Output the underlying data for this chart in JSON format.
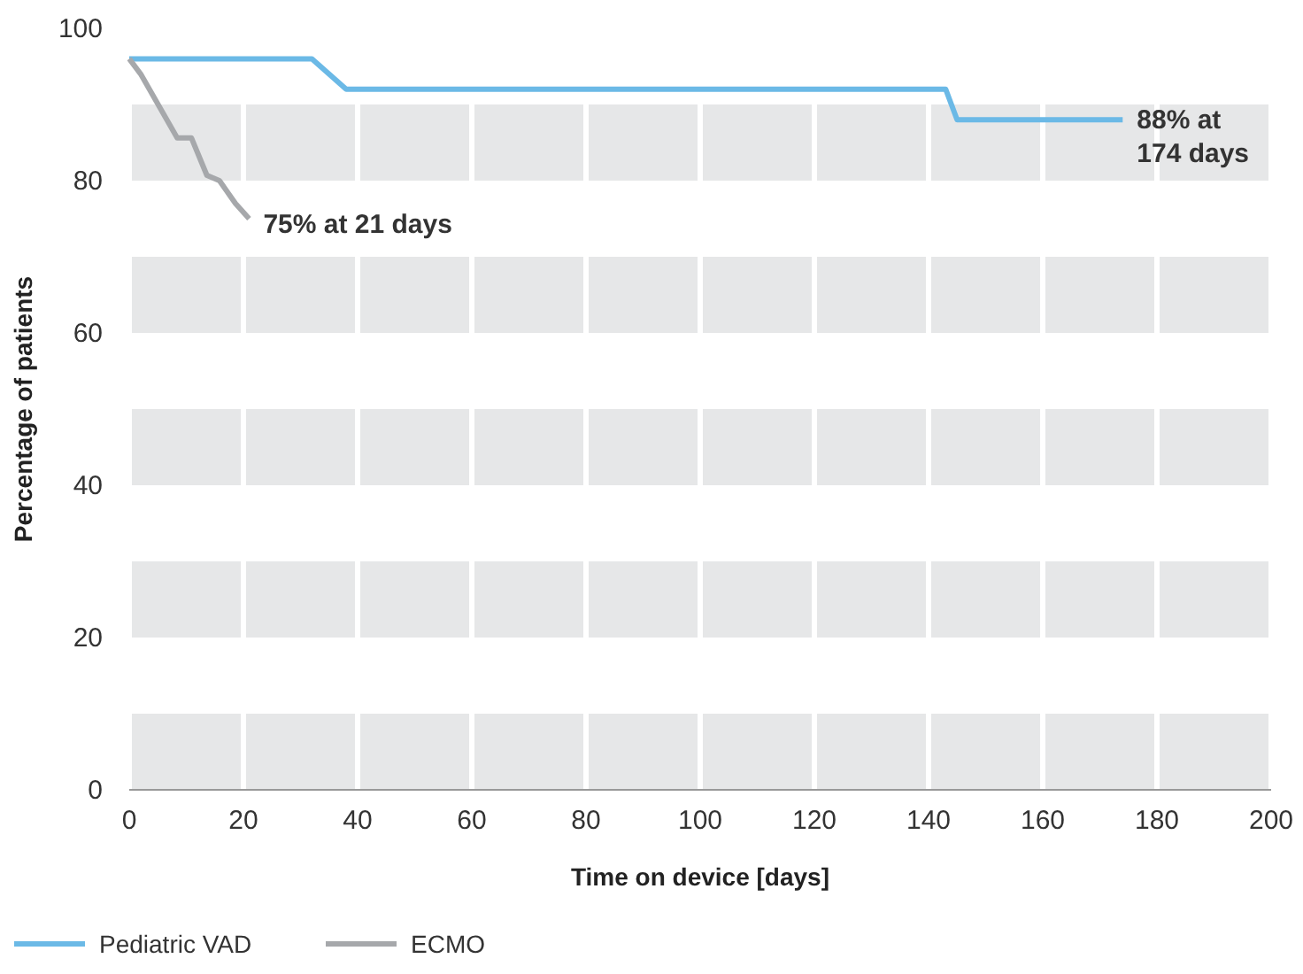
{
  "chart_data": {
    "type": "line",
    "xlabel": "Time on device [days]",
    "ylabel": "Percentage of patients",
    "xlim": [
      0,
      200
    ],
    "xticks": [
      0,
      20,
      40,
      60,
      80,
      100,
      120,
      140,
      160,
      180,
      200
    ],
    "ylim": [
      0,
      100
    ],
    "yticks": [
      0,
      20,
      40,
      60,
      80,
      100
    ],
    "grid": "x",
    "legend": "bottom left",
    "marker": "none",
    "line_style": "solid",
    "bands": [
      {
        "axis": "y",
        "from": 0,
        "to": 10,
        "color": "#e6e7e8"
      },
      {
        "axis": "y",
        "from": 20,
        "to": 30,
        "color": "#e6e7e8"
      },
      {
        "axis": "y",
        "from": 40,
        "to": 50,
        "color": "#e6e7e8"
      },
      {
        "axis": "y",
        "from": 60,
        "to": 70,
        "color": "#e6e7e8"
      },
      {
        "axis": "y",
        "from": 80,
        "to": 90,
        "color": "#e6e7e8"
      }
    ],
    "series": [
      {
        "name": "Pediatric VAD",
        "color": "#6bb9e6",
        "x": [
          0,
          32,
          38,
          143,
          145,
          174
        ],
        "values": [
          96,
          96,
          92,
          92,
          88,
          88
        ]
      },
      {
        "name": "ECMO",
        "color": "#a6a8ab",
        "x": [
          0,
          2,
          8.4,
          10.9,
          13.6,
          15.8,
          18.6,
          21
        ],
        "values": [
          96,
          94,
          85.6,
          85.6,
          80.7,
          80,
          77,
          75
        ]
      }
    ],
    "annotations": [
      {
        "text": "75% at 21 days",
        "x": 21,
        "y": 75
      },
      {
        "text": "88% at 174 days",
        "x": 174,
        "y": 88
      }
    ]
  }
}
